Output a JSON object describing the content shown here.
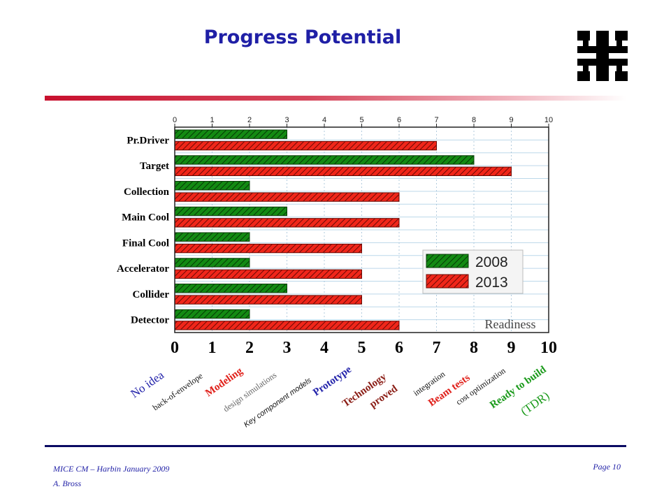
{
  "slide": {
    "title": "Progress Potential",
    "footer_line1": "MICE CM – Harbin January 2009",
    "footer_line2": "A. Bross",
    "page": "Page  10",
    "logo_icon": "fermilab-logo-icon"
  },
  "colors": {
    "s2008": "#138a13",
    "s2013": "#f0261a",
    "title": "#1f1fa6",
    "grid": "#bcd8ea"
  },
  "chart_data": {
    "type": "bar",
    "orientation": "horizontal",
    "title": "",
    "xlabel": "Readiness",
    "xlim": [
      0,
      10
    ],
    "xticks": [
      "0",
      "1",
      "2",
      "3",
      "4",
      "5",
      "6",
      "7",
      "8",
      "9",
      "10"
    ],
    "categories": [
      "Pr.Driver",
      "Target",
      "Collection",
      "Main Cool",
      "Final Cool",
      "Accelerator",
      "Collider",
      "Detector"
    ],
    "series": [
      {
        "name": "2008",
        "values": [
          3,
          8,
          2,
          3,
          2,
          2,
          3,
          2
        ]
      },
      {
        "name": "2013",
        "values": [
          7,
          9,
          6,
          6,
          5,
          5,
          5,
          6
        ]
      }
    ],
    "legend_position": "right",
    "grid": true,
    "scale_labels": [
      {
        "text": "No idea",
        "color": "#2222aa",
        "size": 17,
        "weight": "normal",
        "family": "serif",
        "italic": false,
        "ln": 0
      },
      {
        "text": "back-of-envelope",
        "color": "#111111",
        "size": 12,
        "weight": "normal",
        "family": "serif",
        "italic": false,
        "ln": 1
      },
      {
        "text": "Modeling",
        "color": "#e0201a",
        "size": 15,
        "weight": "bold",
        "family": "serif",
        "italic": false,
        "ln": 0
      },
      {
        "text": "design simulations",
        "color": "#666666",
        "size": 12,
        "weight": "normal",
        "family": "serif",
        "italic": false,
        "ln": 1
      },
      {
        "text": "Key component models",
        "color": "#111111",
        "size": 11,
        "weight": "normal",
        "family": "sans",
        "italic": true,
        "ln": 2
      },
      {
        "text": "Prototype",
        "color": "#2222aa",
        "size": 15,
        "weight": "bold",
        "family": "serif",
        "italic": false,
        "ln": 0
      },
      {
        "text": "Technology",
        "color": "#8a1c14",
        "size": 15,
        "weight": "bold",
        "family": "serif",
        "italic": false,
        "ln": 0
      },
      {
        "text": "proved",
        "color": "#8a1c14",
        "size": 15,
        "weight": "bold",
        "family": "serif",
        "italic": false,
        "ln": 1
      },
      {
        "text": "integration",
        "color": "#111111",
        "size": 12,
        "weight": "normal",
        "family": "serif",
        "italic": false,
        "ln": 0
      },
      {
        "text": "Beam tests",
        "color": "#e0201a",
        "size": 15,
        "weight": "bold",
        "family": "serif",
        "italic": false,
        "ln": 0
      },
      {
        "text": "cost optimization",
        "color": "#111111",
        "size": 12,
        "weight": "normal",
        "family": "serif",
        "italic": false,
        "ln": 0
      },
      {
        "text": "Ready to build",
        "color": "#1a9a1a",
        "size": 15,
        "weight": "bold",
        "family": "serif",
        "italic": false,
        "ln": 0
      },
      {
        "text": "(TDR)",
        "color": "#1a9a1a",
        "size": 17,
        "weight": "normal",
        "family": "serif",
        "italic": false,
        "ln": 1
      }
    ]
  }
}
